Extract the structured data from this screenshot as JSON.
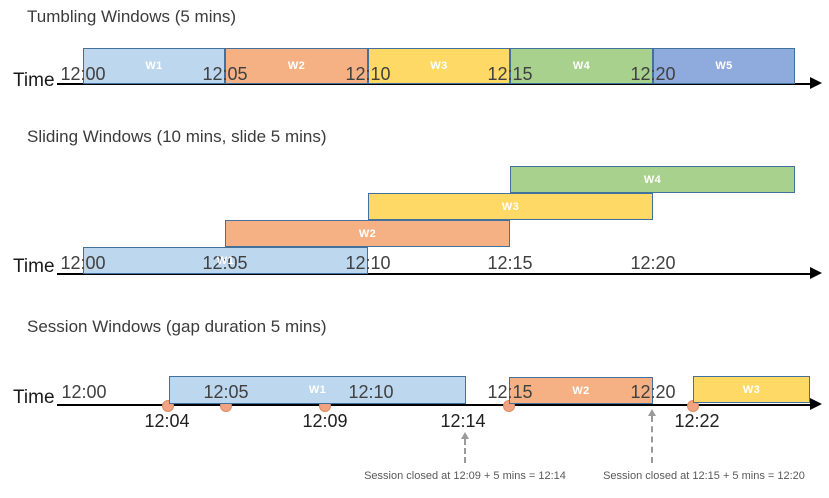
{
  "colors": {
    "window_blue": "#BDD7EE",
    "window_orange": "#F5B183",
    "window_yellow": "#FFD966",
    "window_green": "#A9D18E",
    "window_periwinkle": "#8FAADC",
    "window_border": "#41719C",
    "window_label_text": "#FFFFFF",
    "axis": "#000000",
    "tick_text": "#404040",
    "event_dot_fill": "#F1A383",
    "event_dot_border": "#D98E62",
    "annotation_text": "#595959",
    "annotation_arrow": "#9A9A9A"
  },
  "sections": [
    {
      "title": "Tumbling Windows (5 mins)",
      "axis_label": "Time",
      "ticks": [
        "12:00",
        "12:05",
        "12:10",
        "12:15",
        "12:20"
      ],
      "windows": [
        {
          "label": "W1",
          "start": "12:00",
          "end": "12:05",
          "color_key": "window_blue"
        },
        {
          "label": "W2",
          "start": "12:05",
          "end": "12:10",
          "color_key": "window_orange"
        },
        {
          "label": "W3",
          "start": "12:10",
          "end": "12:15",
          "color_key": "window_yellow"
        },
        {
          "label": "W4",
          "start": "12:15",
          "end": "12:20",
          "color_key": "window_green"
        },
        {
          "label": "W5",
          "start": "12:20",
          "end": "12:25",
          "color_key": "window_periwinkle"
        }
      ]
    },
    {
      "title": "Sliding Windows (10 mins, slide 5 mins)",
      "axis_label": "Time",
      "ticks": [
        "12:00",
        "12:05",
        "12:10",
        "12:15",
        "12:20"
      ],
      "windows": [
        {
          "label": "W1",
          "start": "12:00",
          "end": "12:10",
          "color_key": "window_blue"
        },
        {
          "label": "W2",
          "start": "12:05",
          "end": "12:15",
          "color_key": "window_orange"
        },
        {
          "label": "W3",
          "start": "12:10",
          "end": "12:20",
          "color_key": "window_yellow"
        },
        {
          "label": "W4",
          "start": "12:15",
          "end": "12:25",
          "color_key": "window_green"
        }
      ]
    },
    {
      "title": "Session Windows (gap duration 5 mins)",
      "axis_label": "Time",
      "ticks": [
        "12:00",
        "12:05",
        "12:10",
        "12:15",
        "12:20"
      ],
      "windows": [
        {
          "label": "W1",
          "start": "12:04",
          "end": "12:14",
          "color_key": "window_blue"
        },
        {
          "label": "W2",
          "start": "12:15",
          "end": "12:20",
          "color_key": "window_orange"
        },
        {
          "label": "W3",
          "start": "12:21",
          "end": "12:25",
          "color_key": "window_yellow"
        }
      ],
      "events": [
        "12:04",
        "12:05",
        "12:09",
        "12:15",
        "12:21"
      ],
      "event_labels": [
        "12:04",
        "12:09",
        "12:14",
        "12:22"
      ],
      "annotations": [
        "Session closed at 12:09 + 5 mins = 12:14",
        "Session closed at 12:15 + 5 mins = 12:20"
      ]
    }
  ]
}
